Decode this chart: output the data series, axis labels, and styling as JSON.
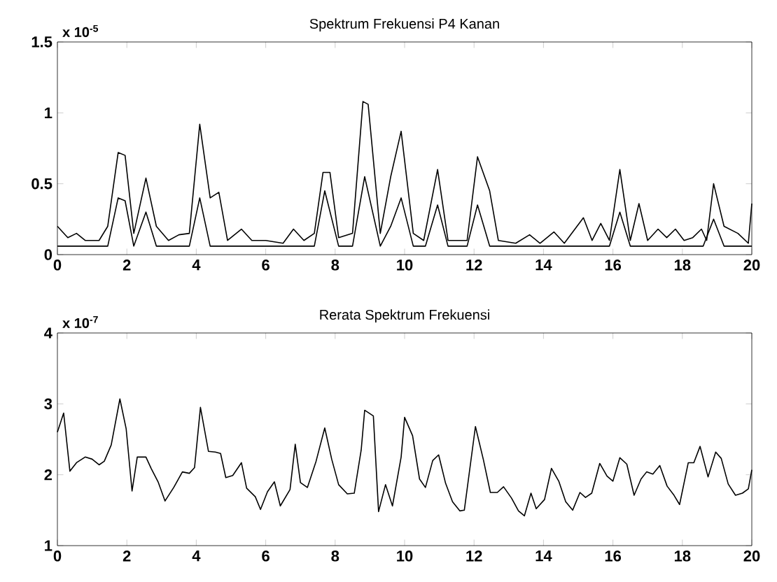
{
  "chart_data": [
    {
      "type": "line",
      "title": "Spektrum Frekuensi P4 Kanan",
      "xlim": [
        0,
        20
      ],
      "ylim": [
        0,
        1.5
      ],
      "xticks": [
        0,
        2,
        4,
        6,
        8,
        10,
        12,
        14,
        16,
        18,
        20
      ],
      "yticks": [
        0,
        0.5,
        1,
        1.5
      ],
      "annotations": [
        "x 10$^{-5}$"
      ],
      "series": [
        {
          "color": "#000000",
          "x": [
            0,
            0.3,
            0.55,
            0.8,
            1.2,
            1.45,
            1.75,
            1.95,
            2.2,
            2.55,
            2.85,
            3.2,
            3.5,
            3.8,
            4.1,
            4.4,
            4.65,
            4.9,
            5.3,
            5.6,
            6.0,
            6.5,
            6.8,
            7.1,
            7.4,
            7.65,
            7.85,
            8.1,
            8.5,
            8.8,
            8.95,
            9.3,
            9.6,
            9.9,
            10.25,
            10.55,
            10.95,
            11.25,
            11.6,
            11.8,
            12.1,
            12.45,
            12.7,
            13.2,
            13.6,
            13.9,
            14.3,
            14.6,
            15.15,
            15.4,
            15.65,
            15.9,
            16.2,
            16.5,
            16.75,
            17.0,
            17.3,
            17.55,
            17.8,
            18.05,
            18.3,
            18.55,
            18.7,
            18.9,
            19.2,
            19.6,
            19.9,
            20
          ],
          "values": [
            0.2,
            0.12,
            0.15,
            0.1,
            0.1,
            0.2,
            0.72,
            0.7,
            0.15,
            0.54,
            0.2,
            0.1,
            0.14,
            0.15,
            0.92,
            0.4,
            0.44,
            0.1,
            0.18,
            0.1,
            0.1,
            0.08,
            0.18,
            0.1,
            0.15,
            0.58,
            0.58,
            0.12,
            0.15,
            1.08,
            1.06,
            0.15,
            0.55,
            0.87,
            0.15,
            0.1,
            0.6,
            0.1,
            0.1,
            0.1,
            0.69,
            0.45,
            0.1,
            0.08,
            0.14,
            0.08,
            0.16,
            0.08,
            0.26,
            0.1,
            0.22,
            0.1,
            0.6,
            0.1,
            0.36,
            0.1,
            0.18,
            0.12,
            0.18,
            0.1,
            0.12,
            0.18,
            0.1,
            0.5,
            0.2,
            0.15,
            0.08,
            0.36
          ]
        },
        {
          "color": "#000000",
          "x": [
            0,
            1.45,
            1.75,
            1.95,
            2.2,
            2.55,
            2.85,
            3.8,
            4.1,
            4.4,
            7.4,
            7.7,
            8.1,
            8.5,
            8.85,
            9.3,
            9.6,
            9.9,
            10.25,
            10.6,
            10.95,
            11.25,
            11.8,
            12.1,
            12.45,
            15.9,
            16.2,
            16.5,
            18.6,
            18.9,
            19.2,
            20
          ],
          "values": [
            0.06,
            0.06,
            0.4,
            0.38,
            0.06,
            0.3,
            0.06,
            0.06,
            0.4,
            0.06,
            0.06,
            0.45,
            0.06,
            0.06,
            0.55,
            0.06,
            0.2,
            0.4,
            0.06,
            0.06,
            0.35,
            0.06,
            0.06,
            0.35,
            0.06,
            0.06,
            0.3,
            0.06,
            0.06,
            0.25,
            0.06,
            0.06
          ]
        }
      ]
    },
    {
      "type": "line",
      "title": "Rerata Spektrum Frekuensi",
      "xlim": [
        0,
        20
      ],
      "ylim": [
        1,
        4
      ],
      "xticks": [
        0,
        2,
        4,
        6,
        8,
        10,
        12,
        14,
        16,
        18,
        20
      ],
      "yticks": [
        1,
        2,
        3,
        4
      ],
      "annotations": [
        "x 10$^{-7}$"
      ],
      "series": [
        {
          "color": "#000000",
          "x": [
            0,
            0.18,
            0.36,
            0.55,
            0.8,
            1.0,
            1.2,
            1.35,
            1.55,
            1.8,
            1.98,
            2.15,
            2.3,
            2.55,
            2.7,
            2.9,
            3.1,
            3.35,
            3.6,
            3.8,
            3.95,
            4.12,
            4.35,
            4.55,
            4.7,
            4.85,
            5.05,
            5.3,
            5.45,
            5.7,
            5.85,
            6.05,
            6.25,
            6.42,
            6.7,
            6.85,
            7.0,
            7.2,
            7.45,
            7.7,
            7.9,
            8.1,
            8.35,
            8.55,
            8.75,
            8.85,
            9.1,
            9.25,
            9.45,
            9.65,
            9.9,
            10.0,
            10.23,
            10.43,
            10.6,
            10.81,
            10.98,
            11.18,
            11.38,
            11.59,
            11.72,
            12.04,
            12.27,
            12.47,
            12.67,
            12.85,
            13.08,
            13.28,
            13.45,
            13.64,
            13.79,
            14.03,
            14.23,
            14.44,
            14.64,
            14.84,
            15.05,
            15.21,
            15.39,
            15.62,
            15.83,
            16.0,
            16.2,
            16.4,
            16.61,
            16.81,
            16.97,
            17.15,
            17.35,
            17.56,
            17.76,
            17.92,
            18.17,
            18.33,
            18.51,
            18.74,
            18.96,
            19.12,
            19.32,
            19.53,
            19.73,
            19.9,
            20
          ],
          "values": [
            2.6,
            2.87,
            2.05,
            2.17,
            2.25,
            2.22,
            2.14,
            2.19,
            2.42,
            3.07,
            2.65,
            1.77,
            2.25,
            2.25,
            2.09,
            1.9,
            1.63,
            1.82,
            2.04,
            2.02,
            2.1,
            2.95,
            2.33,
            2.32,
            2.3,
            1.96,
            1.99,
            2.17,
            1.81,
            1.69,
            1.51,
            1.76,
            1.9,
            1.56,
            1.79,
            2.43,
            1.89,
            1.82,
            2.19,
            2.66,
            2.22,
            1.86,
            1.73,
            1.74,
            2.35,
            2.91,
            2.83,
            1.48,
            1.86,
            1.56,
            2.25,
            2.81,
            2.55,
            1.94,
            1.82,
            2.2,
            2.28,
            1.88,
            1.62,
            1.49,
            1.5,
            2.68,
            2.21,
            1.75,
            1.75,
            1.83,
            1.67,
            1.49,
            1.42,
            1.74,
            1.52,
            1.65,
            2.09,
            1.91,
            1.62,
            1.5,
            1.75,
            1.68,
            1.74,
            2.16,
            1.98,
            1.91,
            2.24,
            2.15,
            1.71,
            1.94,
            2.04,
            2.01,
            2.13,
            1.84,
            1.71,
            1.58,
            2.17,
            2.17,
            2.4,
            1.97,
            2.32,
            2.23,
            1.87,
            1.71,
            1.74,
            1.8,
            2.07
          ]
        }
      ]
    }
  ]
}
